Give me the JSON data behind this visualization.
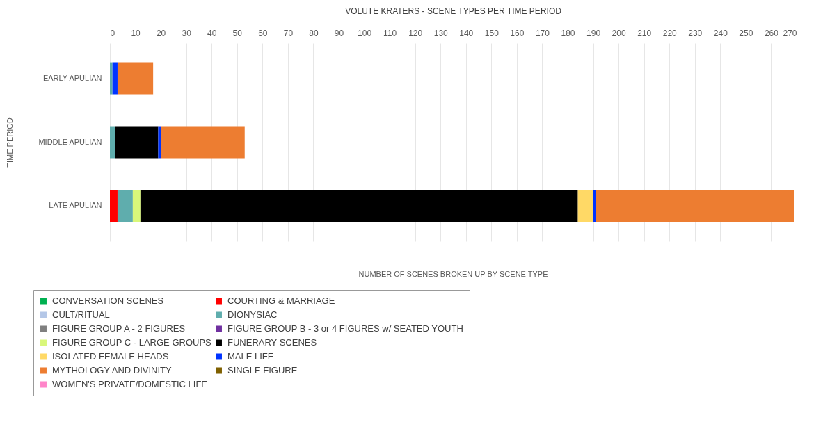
{
  "chart_data": {
    "type": "bar",
    "orientation": "horizontal",
    "stacked": true,
    "title": "VOLUTE KRATERS - SCENE TYPES PER TIME PERIOD",
    "xlabel": "NUMBER OF SCENES BROKEN UP BY SCENE TYPE",
    "ylabel": "TIME PERIOD",
    "categories": [
      "EARLY APULIAN",
      "MIDDLE APULIAN",
      "LATE APULIAN"
    ],
    "xlim": [
      0,
      270
    ],
    "xticks": [
      0,
      10,
      20,
      30,
      40,
      50,
      60,
      70,
      80,
      90,
      100,
      110,
      120,
      130,
      140,
      150,
      160,
      170,
      180,
      190,
      200,
      210,
      220,
      230,
      240,
      250,
      260,
      270
    ],
    "grid": "x",
    "legend": "bottom",
    "series": [
      {
        "name": "CONVERSATION SCENES",
        "color": "#00b050",
        "values": [
          0,
          0,
          0
        ]
      },
      {
        "name": "COURTING & MARRIAGE",
        "color": "#ff0000",
        "values": [
          0,
          0,
          3
        ]
      },
      {
        "name": "CULT/RITUAL",
        "color": "#b4c7e7",
        "values": [
          0,
          0,
          0
        ]
      },
      {
        "name": "DIONYSIAC",
        "color": "#5fadad",
        "values": [
          1,
          2,
          6
        ]
      },
      {
        "name": "FIGURE GROUP A  - 2 FIGURES",
        "color": "#7f7f7f",
        "values": [
          0,
          0,
          0
        ]
      },
      {
        "name": "FIGURE GROUP B - 3 or 4 FIGURES w/ SEATED YOUTH",
        "color": "#7030a0",
        "values": [
          0,
          0,
          0
        ]
      },
      {
        "name": "FIGURE GROUP C  - LARGE GROUPS",
        "color": "#d9f77a",
        "values": [
          0,
          0,
          3
        ]
      },
      {
        "name": "FUNERARY SCENES",
        "color": "#000000",
        "values": [
          0,
          17,
          172
        ]
      },
      {
        "name": "ISOLATED FEMALE HEADS",
        "color": "#ffd966",
        "values": [
          0,
          0,
          6
        ]
      },
      {
        "name": "MALE LIFE",
        "color": "#0033ff",
        "values": [
          2,
          1,
          1
        ]
      },
      {
        "name": "MYTHOLOGY AND DIVINITY",
        "color": "#ed7d31",
        "values": [
          14,
          33,
          78
        ]
      },
      {
        "name": "SINGLE FIGURE",
        "color": "#7f6000",
        "values": [
          0,
          0,
          0
        ]
      },
      {
        "name": "WOMEN'S PRIVATE/DOMESTIC LIFE",
        "color": "#ff85c9",
        "values": [
          0,
          0,
          0
        ]
      }
    ]
  }
}
